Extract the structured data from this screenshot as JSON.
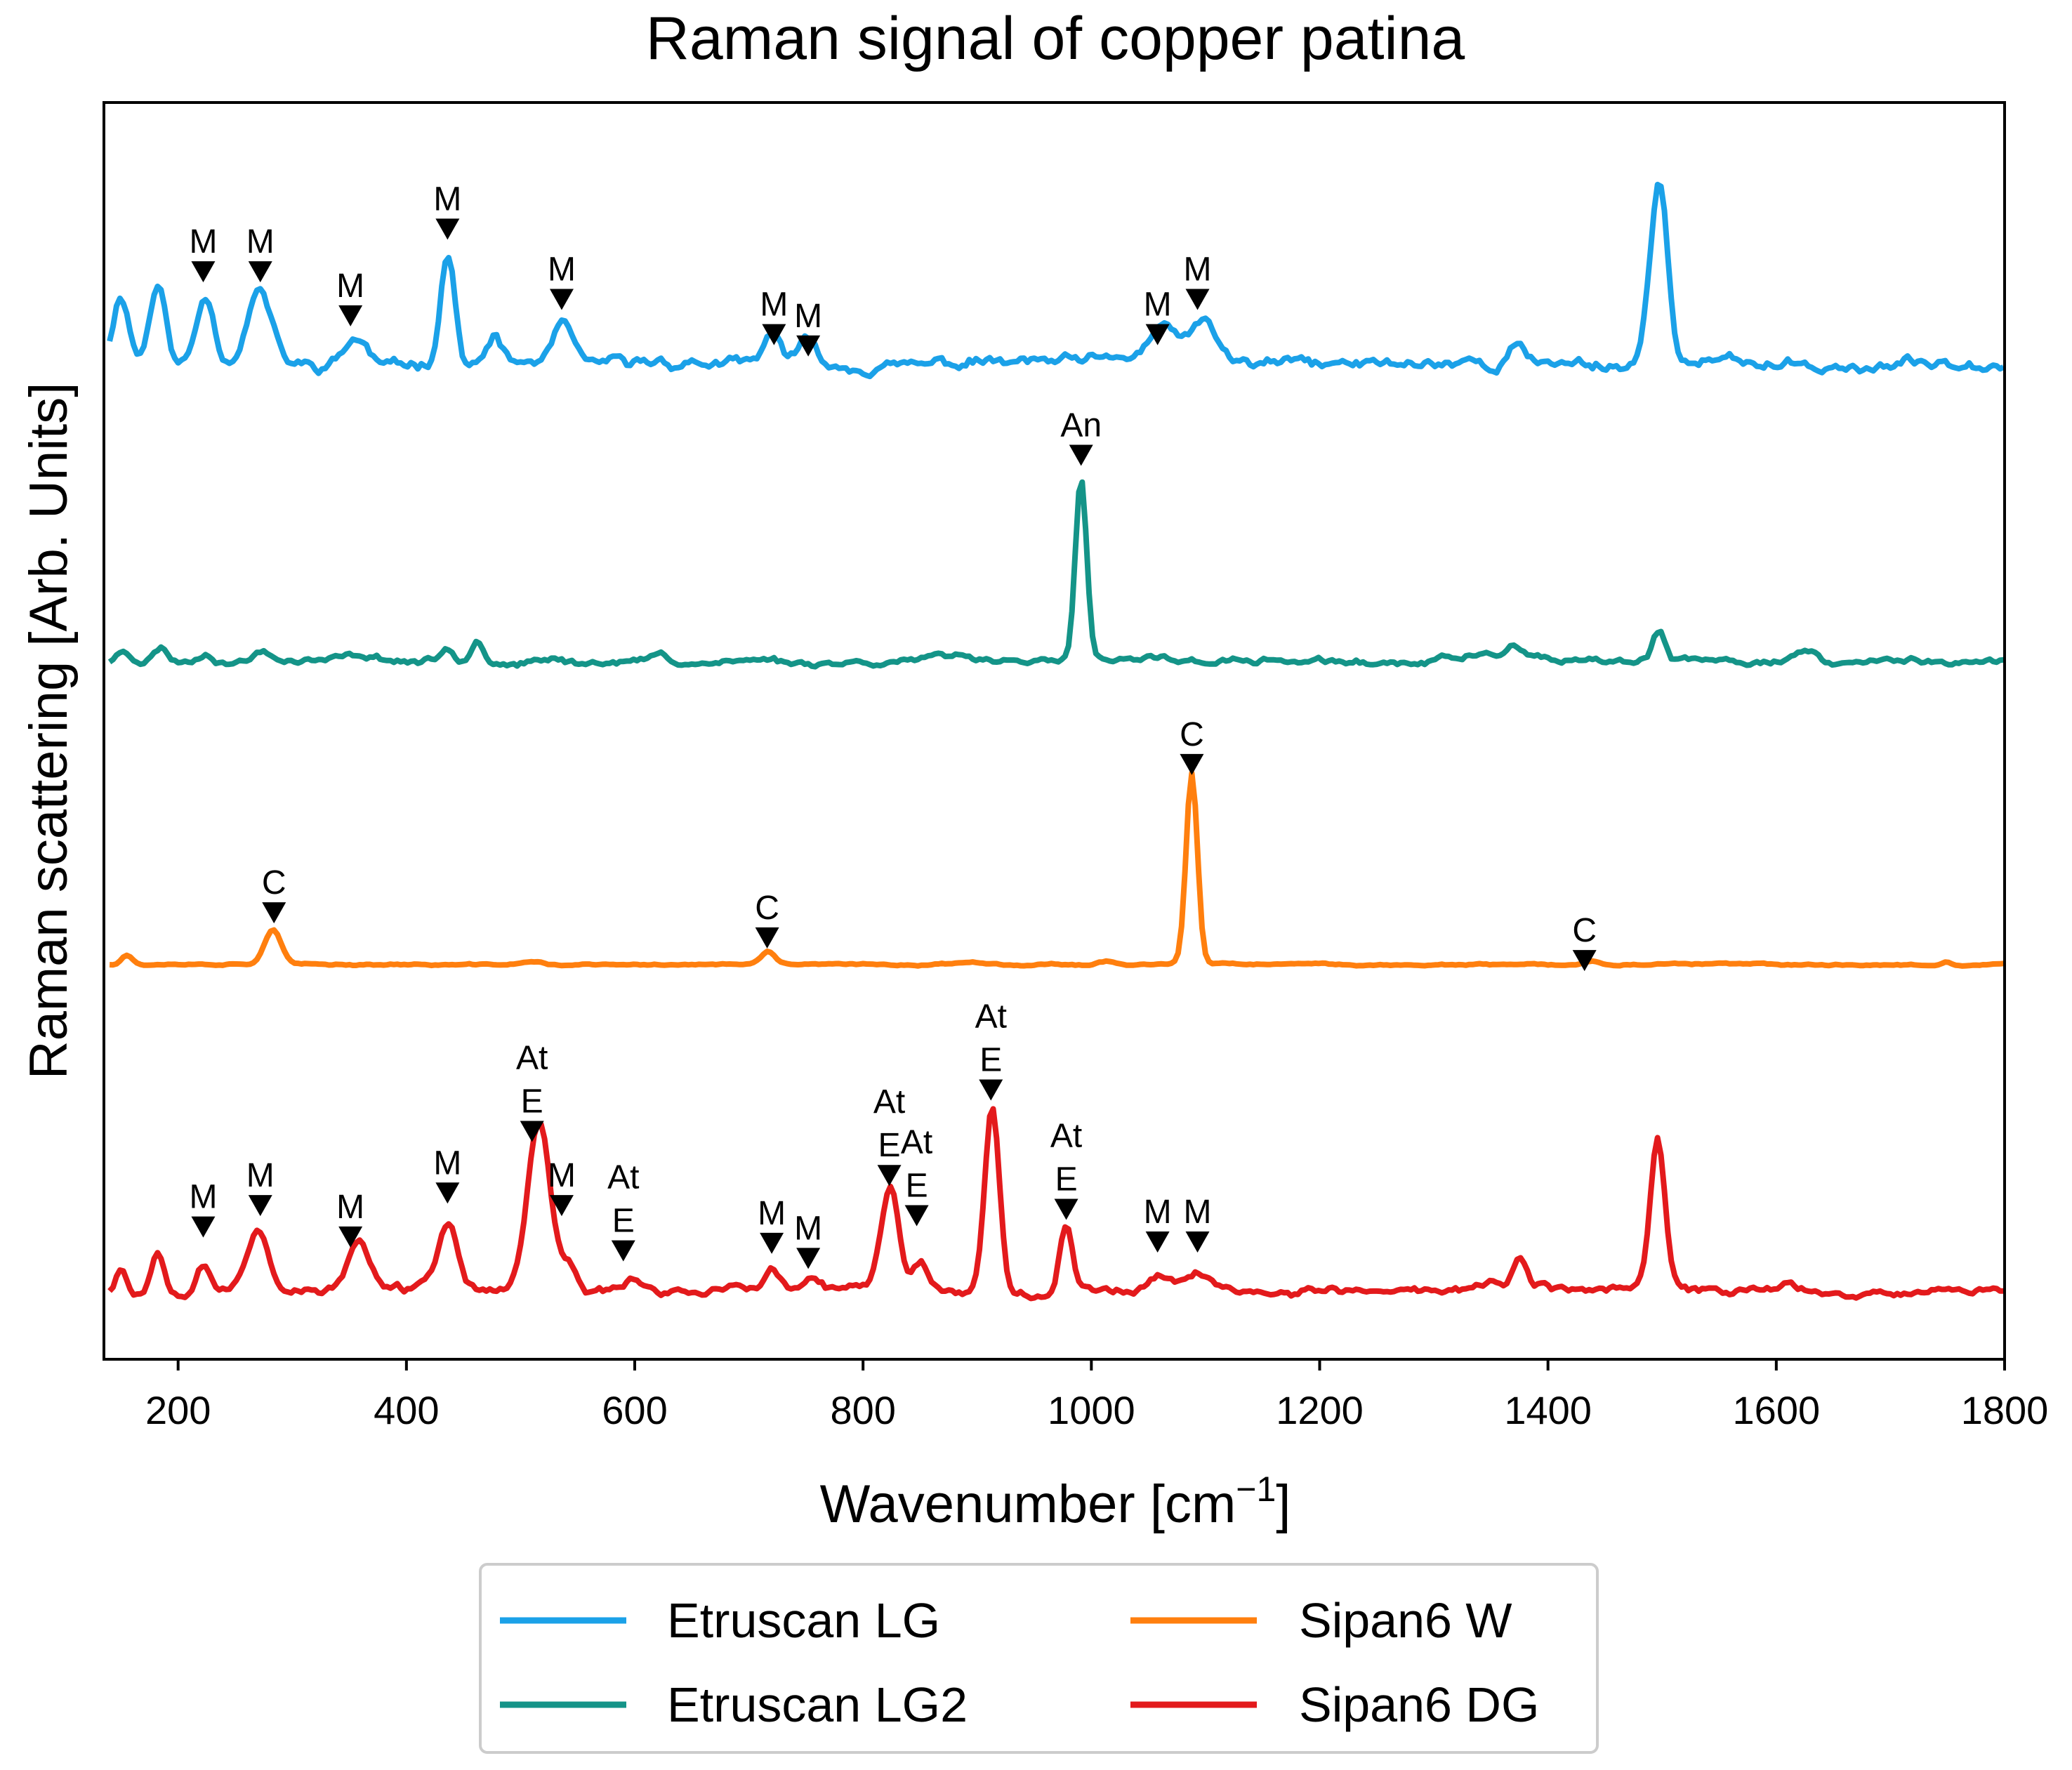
{
  "chart_data": {
    "type": "line",
    "title": "Raman signal of copper patina",
    "xlabel": "Wavenumber [cm",
    "xlabel_sup": "−1",
    "xlabel_end": "]",
    "ylabel": "Raman scattering [Arb. Units]",
    "xlim": [
      135,
      1800
    ],
    "ylim": [
      0,
      100
    ],
    "y_ticks_visible": false,
    "grid": false,
    "x_ticks": [
      200,
      400,
      600,
      800,
      1000,
      1200,
      1400,
      1600,
      1800
    ],
    "legend": {
      "placement": "bottom-center",
      "columns": 2
    },
    "series": [
      {
        "name": "Etruscan LG",
        "color": "#1ba1e8",
        "baseline": 79.2,
        "peaks": [
          [
            150,
            5.5,
            10
          ],
          [
            182,
            6.5,
            10
          ],
          [
            224,
            5.5,
            11
          ],
          [
            271,
            6,
            15
          ],
          [
            355,
            2.2,
            14
          ],
          [
            436,
            9,
            9
          ],
          [
            477,
            2.2,
            8
          ],
          [
            537,
            3.4,
            11
          ],
          [
            616,
            0.4,
            10
          ],
          [
            722,
            2.5,
            9
          ],
          [
            752,
            1.6,
            12
          ],
          [
            1064,
            2.8,
            20
          ],
          [
            1098,
            3,
            16
          ],
          [
            1373,
            1.7,
            9
          ],
          [
            1497,
            14.5,
            11
          ]
        ],
        "noise": 0.55,
        "seed": 11
      },
      {
        "name": "Etruscan LG2",
        "color": "#149488",
        "baseline": 55.5,
        "peaks": [
          [
            152,
            0.8,
            8
          ],
          [
            185,
            1.1,
            8
          ],
          [
            225,
            0.7,
            8
          ],
          [
            274,
            0.8,
            8
          ],
          [
            363,
            0.4,
            20
          ],
          [
            436,
            0.9,
            7
          ],
          [
            462,
            1.9,
            8
          ],
          [
            530,
            0.4,
            10
          ],
          [
            621,
            0.6,
            8
          ],
          [
            718,
            0.3,
            8
          ],
          [
            895,
            0.5,
            40
          ],
          [
            991,
            14.5,
            7
          ],
          [
            1060,
            0.3,
            20
          ],
          [
            1340,
            0.6,
            40
          ],
          [
            1370,
            0.8,
            10
          ],
          [
            1497,
            2.3,
            8
          ],
          [
            1625,
            0.9,
            14
          ]
        ],
        "noise": 0.3,
        "seed": 23
      },
      {
        "name": "Sipan6 W",
        "color": "#ff7f0e",
        "baseline": 31.4,
        "peaks": [
          [
            155,
            0.8,
            7
          ],
          [
            283,
            2.8,
            10
          ],
          [
            510,
            0.25,
            12
          ],
          [
            717,
            1.0,
            8
          ],
          [
            900,
            0.2,
            25
          ],
          [
            1014,
            0.3,
            10
          ],
          [
            1088,
            15.2,
            7
          ],
          [
            1440,
            0.25,
            8
          ],
          [
            1749,
            0.3,
            6
          ]
        ],
        "noise": 0.08,
        "seed": 37
      },
      {
        "name": "Sipan6 DG",
        "color": "#e31a1c",
        "baseline": 5.5,
        "peaks": [
          [
            150,
            2,
            6
          ],
          [
            182,
            3.2,
            8
          ],
          [
            222,
            2.3,
            9
          ],
          [
            270,
            4.6,
            13
          ],
          [
            358,
            3.8,
            13
          ],
          [
            420,
            1.2,
            10
          ],
          [
            437,
            5.3,
            10
          ],
          [
            516,
            13.5,
            14
          ],
          [
            542,
            2.2,
            9
          ],
          [
            598,
            0.9,
            14
          ],
          [
            720,
            1.4,
            9
          ],
          [
            756,
            0.6,
            8
          ],
          [
            824,
            8.3,
            11
          ],
          [
            850,
            2.3,
            8
          ],
          [
            913,
            14.7,
            9
          ],
          [
            978,
            5.6,
            8
          ],
          [
            1062,
            1.4,
            14
          ],
          [
            1095,
            1.5,
            14
          ],
          [
            1350,
            0.6,
            12
          ],
          [
            1375,
            2.2,
            9
          ],
          [
            1395,
            0.8,
            6
          ],
          [
            1496,
            11.8,
            9
          ],
          [
            1610,
            0.5,
            10
          ]
        ],
        "noise": 0.4,
        "seed": 53
      }
    ],
    "annotations": [
      {
        "x": 222,
        "y": 85.8,
        "labels": [
          "M"
        ]
      },
      {
        "x": 272,
        "y": 85.8,
        "labels": [
          "M"
        ]
      },
      {
        "x": 351,
        "y": 82.3,
        "labels": [
          "M"
        ]
      },
      {
        "x": 436,
        "y": 89.2,
        "labels": [
          "M"
        ]
      },
      {
        "x": 536,
        "y": 83.6,
        "labels": [
          "M"
        ]
      },
      {
        "x": 722,
        "y": 80.8,
        "labels": [
          "M"
        ]
      },
      {
        "x": 752,
        "y": 79.9,
        "labels": [
          "M"
        ]
      },
      {
        "x": 1058,
        "y": 80.8,
        "labels": [
          "M"
        ]
      },
      {
        "x": 1093,
        "y": 83.6,
        "labels": [
          "M"
        ]
      },
      {
        "x": 991,
        "y": 71.2,
        "labels": [
          "An"
        ]
      },
      {
        "x": 1088,
        "y": 46.6,
        "labels": [
          "C"
        ]
      },
      {
        "x": 284,
        "y": 34.8,
        "labels": [
          "C"
        ]
      },
      {
        "x": 716,
        "y": 32.8,
        "labels": [
          "C"
        ]
      },
      {
        "x": 1432,
        "y": 31.0,
        "labels": [
          "C"
        ]
      },
      {
        "x": 222,
        "y": 9.8,
        "labels": [
          "M"
        ]
      },
      {
        "x": 272,
        "y": 11.5,
        "labels": [
          "M"
        ]
      },
      {
        "x": 351,
        "y": 9.0,
        "labels": [
          "M"
        ]
      },
      {
        "x": 436,
        "y": 12.5,
        "labels": [
          "M"
        ]
      },
      {
        "x": 510,
        "y": 17.4,
        "labels": [
          "At",
          "E"
        ]
      },
      {
        "x": 536,
        "y": 11.5,
        "labels": [
          "M"
        ]
      },
      {
        "x": 590,
        "y": 7.9,
        "labels": [
          "At",
          "E"
        ]
      },
      {
        "x": 720,
        "y": 8.5,
        "labels": [
          "M"
        ]
      },
      {
        "x": 752,
        "y": 7.3,
        "labels": [
          "M"
        ]
      },
      {
        "x": 823,
        "y": 13.9,
        "labels": [
          "At",
          "E"
        ]
      },
      {
        "x": 847,
        "y": 10.7,
        "labels": [
          "At",
          "E"
        ]
      },
      {
        "x": 912,
        "y": 20.7,
        "labels": [
          "At",
          "E"
        ]
      },
      {
        "x": 978,
        "y": 11.2,
        "labels": [
          "At",
          "E"
        ]
      },
      {
        "x": 1058,
        "y": 8.6,
        "labels": [
          "M"
        ]
      },
      {
        "x": 1093,
        "y": 8.6,
        "labels": [
          "M"
        ]
      }
    ]
  }
}
